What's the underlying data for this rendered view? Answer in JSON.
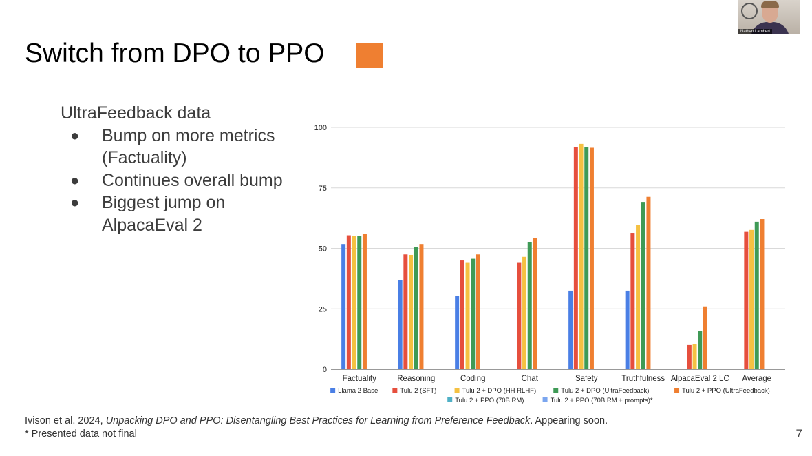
{
  "slide": {
    "title": "Switch from DPO to PPO",
    "accent_color": "#ef7f31",
    "lead": "UltraFeedback data",
    "bullets": [
      "Bump on more metrics (Factuality)",
      "Continues overall bump",
      "Biggest jump on AlpacaEval 2"
    ],
    "bullet_glyph": "●",
    "footer": {
      "citation_prefix": "Ivison et al. 2024, ",
      "citation_title": "Unpacking DPO and PPO: Disentangling Best Practices for Learning from Preference Feedback",
      "citation_suffix": ". Appearing soon.",
      "note": "* Presented data not final"
    },
    "page_number": "7",
    "webcam_name": "Nathan Lambert"
  },
  "chart_data": {
    "type": "bar",
    "title": "",
    "xlabel": "",
    "ylabel": "",
    "ylim": [
      0,
      100
    ],
    "yticks": [
      0,
      25,
      50,
      75,
      100
    ],
    "grid": true,
    "legend_position": "bottom",
    "categories": [
      "Factuality",
      "Reasoning",
      "Coding",
      "Chat",
      "Safety",
      "Truthfulness",
      "AlpacaEval 2 LC",
      "Average"
    ],
    "series": [
      {
        "name": "Llama 2 Base",
        "color": "#4a7fe5",
        "values": [
          51.8,
          36.8,
          30.4,
          null,
          32.5,
          32.5,
          null,
          null
        ]
      },
      {
        "name": "Tulu 2 (SFT)",
        "color": "#e64f3d",
        "values": [
          55.4,
          47.5,
          45.0,
          44.0,
          91.8,
          56.4,
          10.0,
          56.8
        ]
      },
      {
        "name": "Tulu 2 + DPO (HH RLHF)",
        "color": "#f5c142",
        "values": [
          55.0,
          47.3,
          44.0,
          46.5,
          93.2,
          59.8,
          10.5,
          57.6
        ]
      },
      {
        "name": "Tulu 2 + DPO (UltraFeedback)",
        "color": "#3f9a56",
        "values": [
          55.2,
          50.5,
          45.7,
          52.5,
          91.8,
          69.2,
          15.8,
          61.0
        ]
      },
      {
        "name": "Tulu 2 + PPO (UltraFeedback)",
        "color": "#ef7f31",
        "values": [
          56.0,
          51.8,
          47.5,
          54.3,
          91.6,
          71.3,
          26.0,
          62.1
        ]
      },
      {
        "name": "Tulu 2 + PPO (70B RM)",
        "color": "#4fb0c6",
        "values": [
          null,
          null,
          null,
          null,
          null,
          null,
          null,
          null
        ]
      },
      {
        "name": "Tulu 2 + PPO (70B RM + prompts)*",
        "color": "#7ba6ef",
        "values": [
          null,
          null,
          null,
          null,
          null,
          null,
          null,
          null
        ]
      }
    ],
    "legend_rows": [
      [
        0,
        1,
        2,
        3,
        4
      ],
      [
        5,
        6
      ]
    ],
    "axis_color": "#333333",
    "grid_color": "#d9d9d9",
    "tick_label_color": "#222222"
  }
}
